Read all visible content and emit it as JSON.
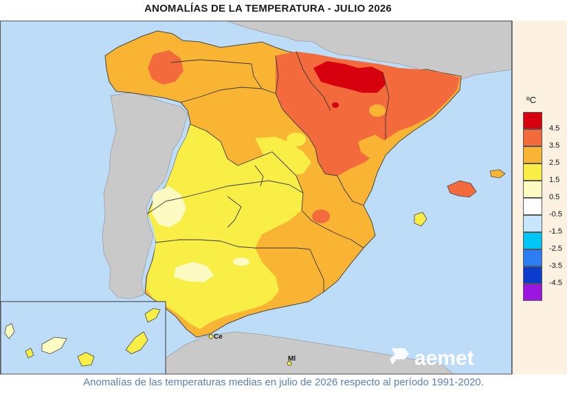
{
  "title": "ANOMALÍAS DE LA TEMPERATURA - JULIO 2026",
  "legend": {
    "unit": "ºC",
    "items": [
      {
        "label": "4.5",
        "color": "#d7000f"
      },
      {
        "label": "3.5",
        "color": "#f36b3c"
      },
      {
        "label": "2.5",
        "color": "#f9b434"
      },
      {
        "label": "1.5",
        "color": "#f8ee45"
      },
      {
        "label": "0.5",
        "color": "#fdfac2"
      },
      {
        "label": "-0.5",
        "color": "#fefefe"
      },
      {
        "label": "-1.5",
        "color": "#c8e6fb"
      },
      {
        "label": "-2.5",
        "color": "#00c5f5"
      },
      {
        "label": "-3.5",
        "color": "#2f7df2"
      },
      {
        "label": "-4.5",
        "color": "#0a3ccd"
      },
      {
        "label": "",
        "color": "#9b16e0"
      }
    ]
  },
  "places": {
    "ceuta": "Ce",
    "melilla": "Ml"
  },
  "logo": "aemet",
  "caption": "Anomalías de las temperaturas medias en julio de 2026 respecto al período 1991-2020."
}
